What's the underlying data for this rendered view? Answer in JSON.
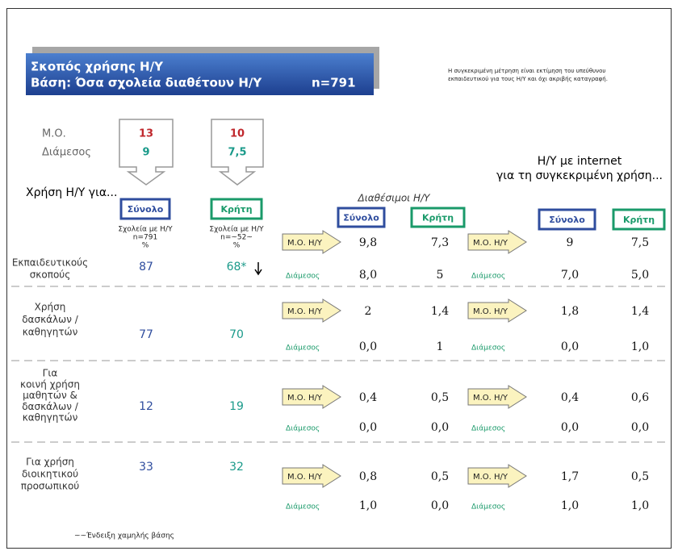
{
  "header": {
    "title_line1": "Σκοπός χρήσης Η/Υ",
    "title_line2": "Βάση: Όσα σχολεία διαθέτουν Η/Υ",
    "n": "n=791",
    "note": [
      "Η συγκεκριμένη μέτρηση είναι εκτίμηση του υπεύθυνου",
      "εκπαιδευτικού για τους Η/Υ και όχι ακριβής καταγραφή."
    ]
  },
  "summary": {
    "labels": [
      "Μ.Ο.",
      "Διάμεσος"
    ],
    "total": [
      "13",
      "9"
    ],
    "crete": [
      "10",
      "7,5"
    ]
  },
  "intro": "Χρήση Η/Υ για...",
  "columns": {
    "total": "Σύνολο",
    "crete": "Κρήτη",
    "total_base": [
      "Σχολεία με Η/Υ",
      "n=791",
      "%"
    ],
    "crete_base": [
      "Σχολεία με Η/Υ",
      "n=~52~",
      "%"
    ]
  },
  "available_title": "Διαθέσιμοι Η/Υ",
  "internet_title": [
    "Η/Υ με internet",
    "για τη συγκεκριμένη χρήση..."
  ],
  "mean_label": "Μ.Ο. Η/Υ",
  "median_label": "Διάμεσος",
  "rows": [
    {
      "label": [
        "Εκπαιδευτικούς",
        "σκοπούς"
      ],
      "total": "87",
      "crete": "68*",
      "available": {
        "mean": [
          "9,8",
          "7,3"
        ],
        "median": [
          "8,0",
          "5"
        ]
      },
      "internet": {
        "mean": [
          "9",
          "7,5"
        ],
        "median": [
          "7,0",
          "5,0"
        ]
      }
    },
    {
      "label": [
        "Χρήση",
        "δασκάλων /",
        "καθηγητών"
      ],
      "total": "77",
      "crete": "70",
      "available": {
        "mean": [
          "2",
          "1,4"
        ],
        "median": [
          "0,0",
          "1"
        ]
      },
      "internet": {
        "mean": [
          "1,8",
          "1,4"
        ],
        "median": [
          "0,0",
          "1,0"
        ]
      }
    },
    {
      "label": [
        "Για",
        "κοινή χρήση",
        "μαθητών &",
        "δασκάλων /",
        "καθηγητών"
      ],
      "total": "12",
      "crete": "19",
      "available": {
        "mean": [
          "0,4",
          "0,5"
        ],
        "median": [
          "0,0",
          "0,0"
        ]
      },
      "internet": {
        "mean": [
          "0,4",
          "0,6"
        ],
        "median": [
          "0,0",
          "0,0"
        ]
      }
    },
    {
      "label": [
        "Για χρήση",
        "διοικητικού",
        "προσωπικού"
      ],
      "total": "33",
      "crete": "32",
      "available": {
        "mean": [
          "0,8",
          "0,5"
        ],
        "median": [
          "1,0",
          "0,0"
        ]
      },
      "internet": {
        "mean": [
          "1,7",
          "0,5"
        ],
        "median": [
          "1,0",
          "1,0"
        ]
      }
    }
  ],
  "footnote": "~~Ένδειξη χαμηλής βάσης"
}
